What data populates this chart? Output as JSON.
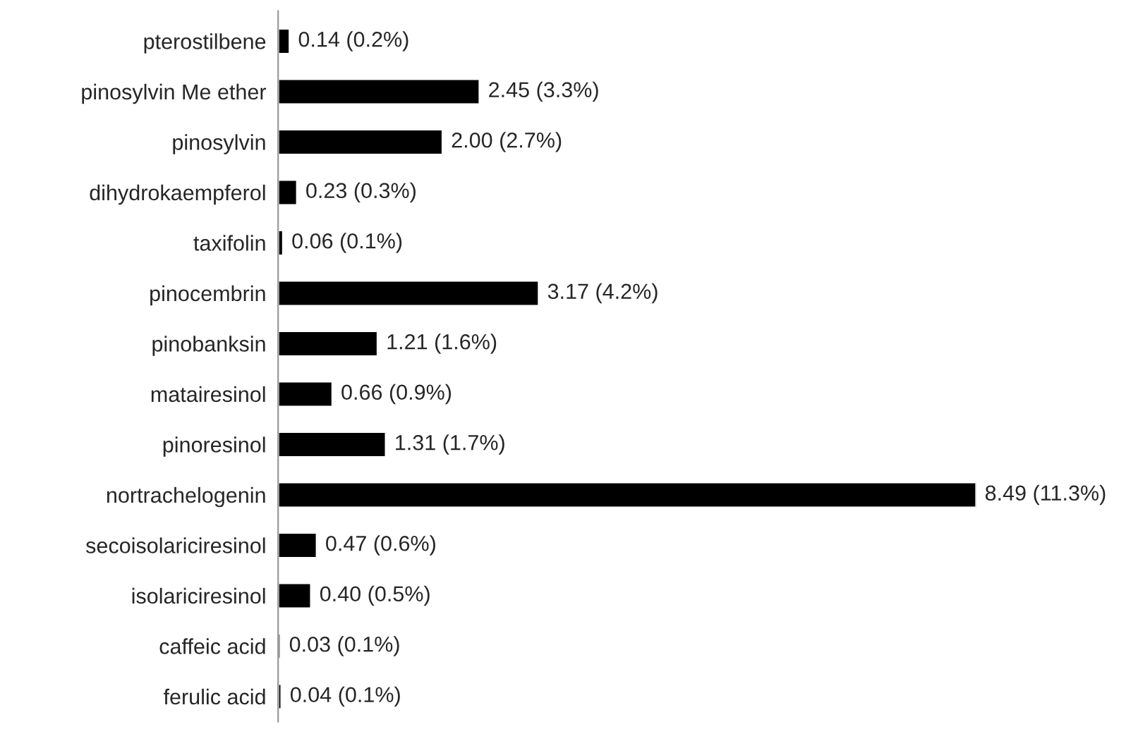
{
  "chart_data": {
    "type": "bar",
    "orientation": "horizontal",
    "color": "#000000",
    "categories": [
      "pterostilbene",
      "pinosylvin Me ether",
      "pinosylvin",
      "dihydrokaempferol",
      "taxifolin",
      "pinocembrin",
      "pinobanksin",
      "matairesinol",
      "pinoresinol",
      "nortrachelogenin",
      "secoisolariciresinol",
      "isolariciresinol",
      "caffeic acid",
      "ferulic acid"
    ],
    "values": [
      0.14,
      2.45,
      2.0,
      0.23,
      0.06,
      3.17,
      1.21,
      0.66,
      1.31,
      8.49,
      0.47,
      0.4,
      0.03,
      0.04
    ],
    "value_labels": [
      "0.14 (0.2%)",
      "2.45 (3.3%)",
      "2.00 (2.7%)",
      "0.23 (0.3%)",
      "0.06 (0.1%)",
      "3.17 (4.2%)",
      "1.21 (1.6%)",
      "0.66 (0.9%)",
      "1.31 (1.7%)",
      "8.49 (11.3%)",
      "0.47 (0.6%)",
      "0.40 (0.5%)",
      "0.03 (0.1%)",
      "0.04 (0.1%)"
    ]
  }
}
